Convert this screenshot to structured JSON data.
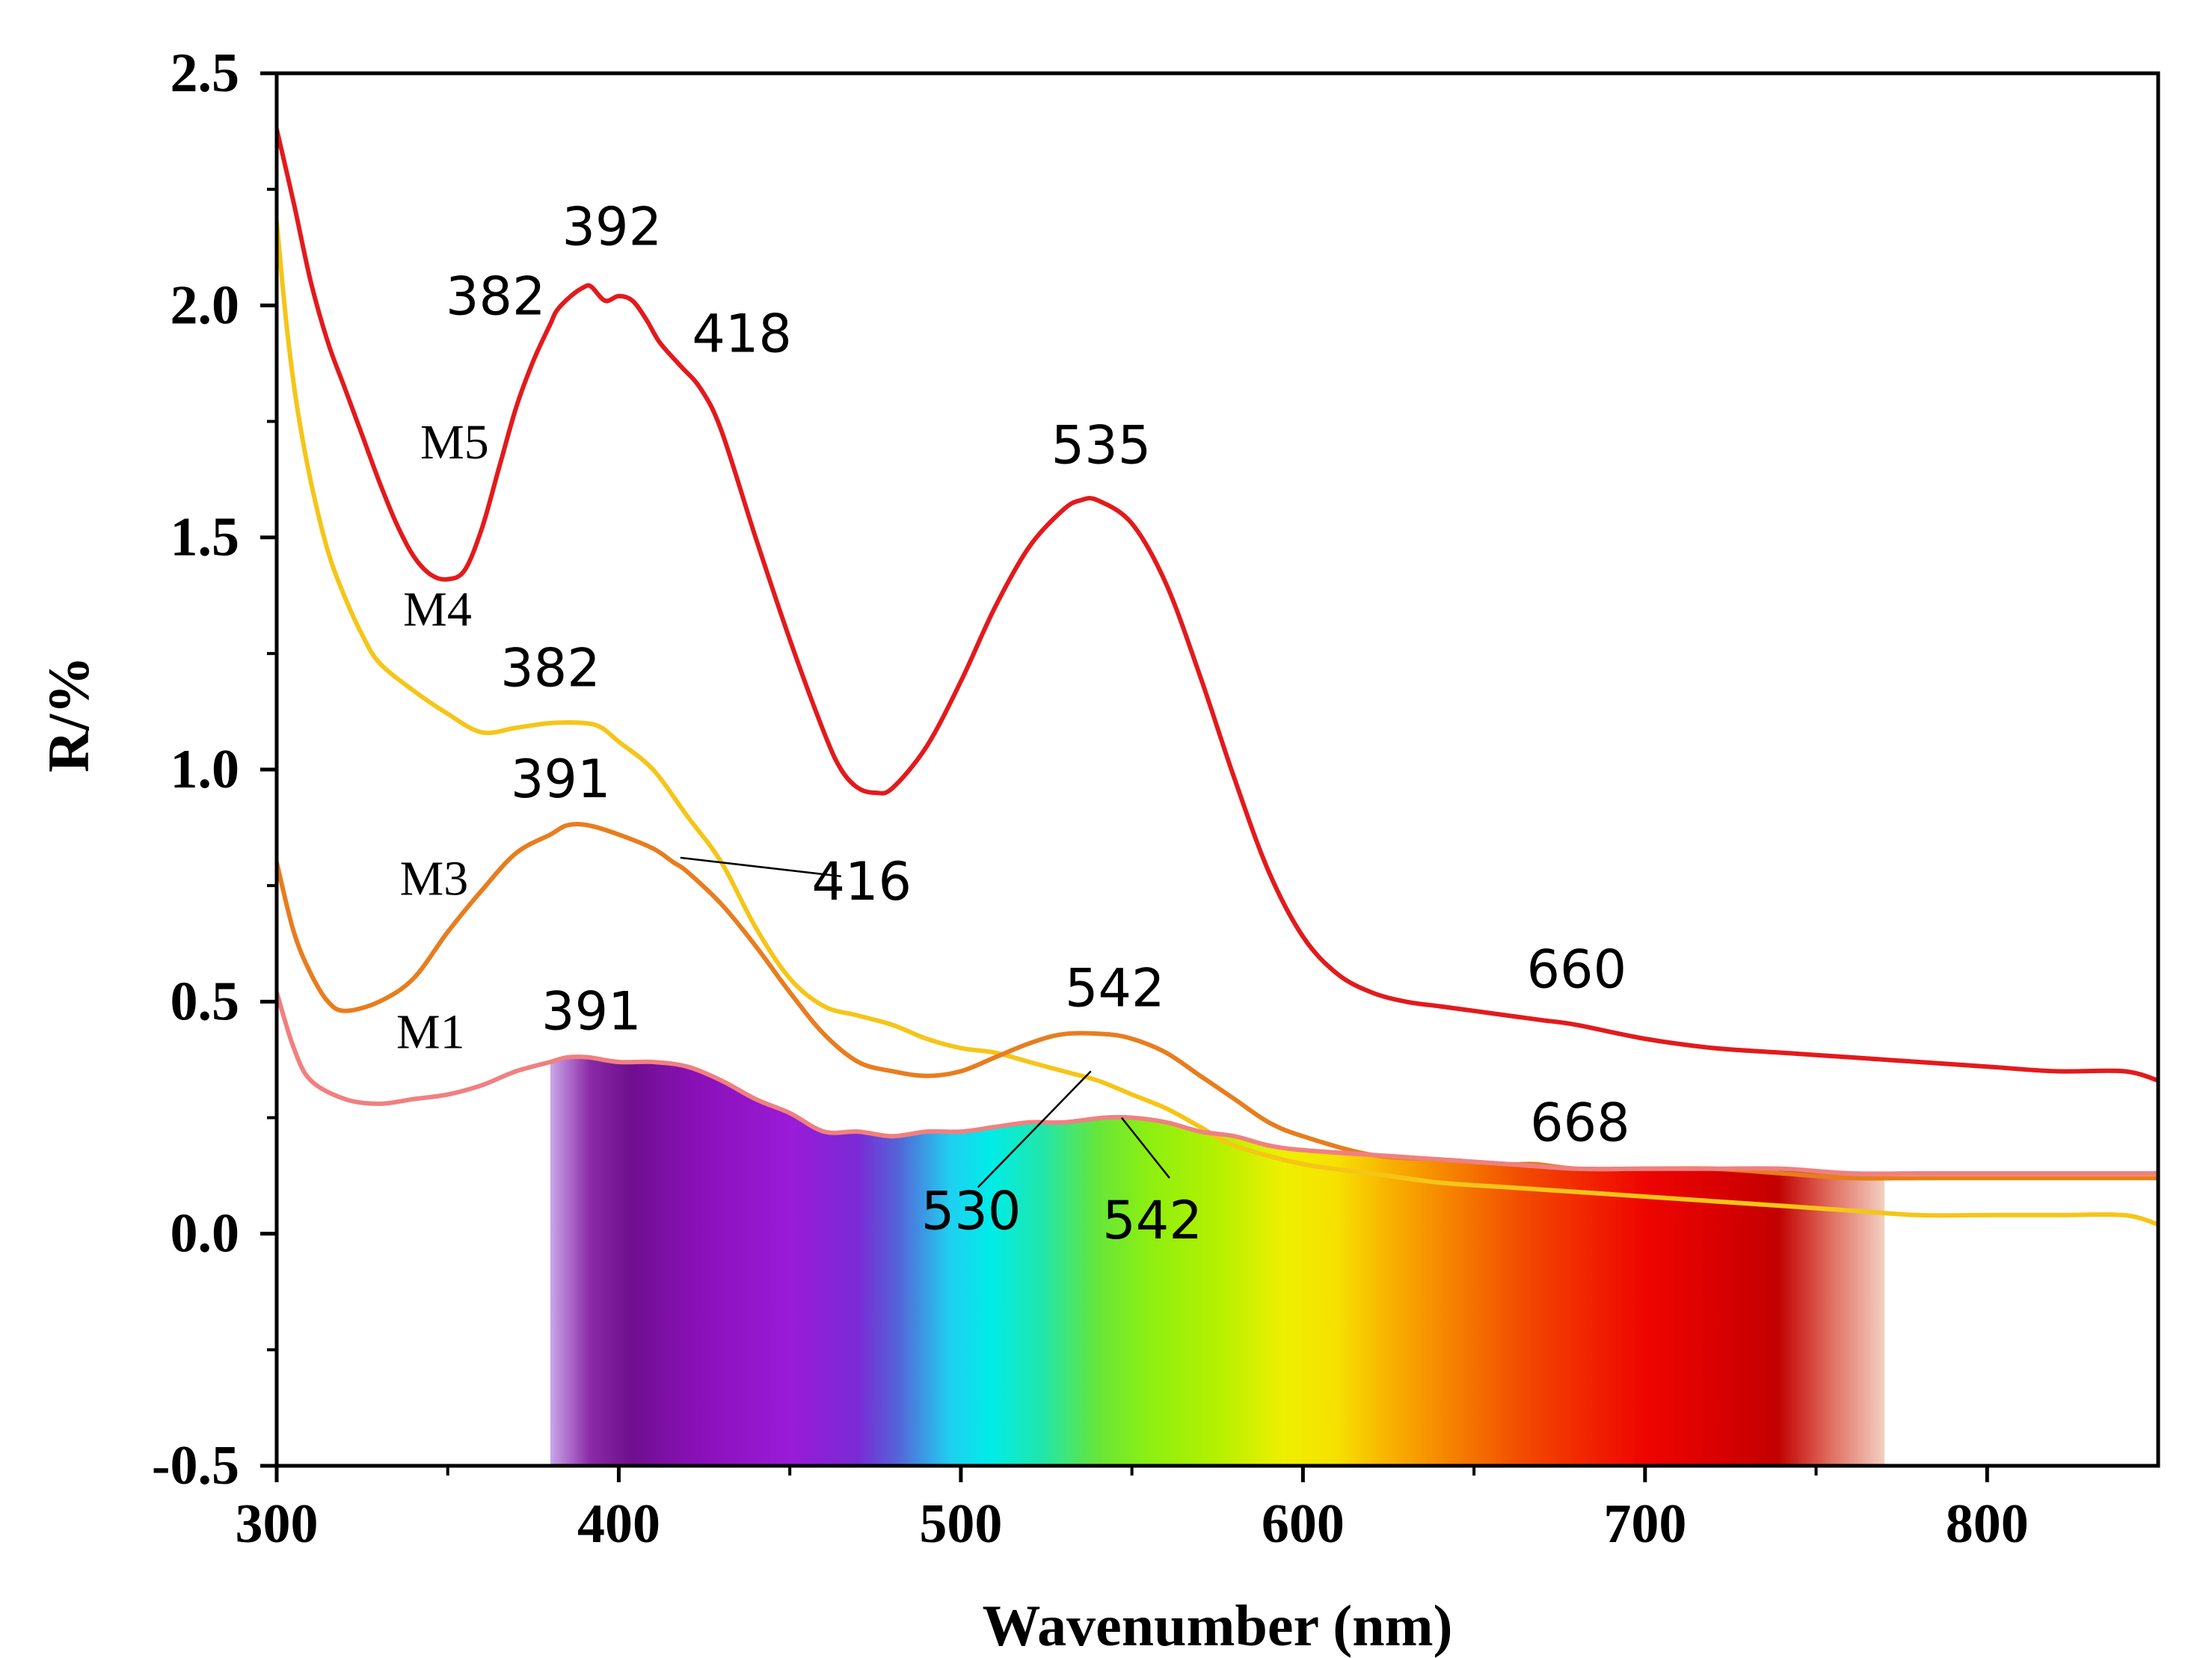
{
  "chart_data": {
    "type": "line",
    "title": "",
    "xlabel": "Wavenumber (nm)",
    "ylabel": "R/%",
    "xlim": [
      300,
      850
    ],
    "ylim": [
      -0.5,
      2.5
    ],
    "x_ticks": [
      300,
      400,
      500,
      600,
      700,
      800
    ],
    "y_ticks": [
      -0.5,
      0.0,
      0.5,
      1.0,
      1.5,
      2.0,
      2.5
    ],
    "x_tick_labels": [
      "300",
      "400",
      "500",
      "600",
      "700",
      "800"
    ],
    "y_tick_labels": [
      "-0.5",
      "0.0",
      "0.5",
      "1.0",
      "1.5",
      "2.0",
      "2.5"
    ],
    "grid": false,
    "visible_spectrum_band": {
      "from": 380,
      "to": 770
    },
    "series": [
      {
        "name": "M5",
        "color": "#e31a1c",
        "points": [
          [
            300,
            2.38
          ],
          [
            305,
            2.22
          ],
          [
            310,
            2.05
          ],
          [
            315,
            1.92
          ],
          [
            320,
            1.82
          ],
          [
            325,
            1.72
          ],
          [
            330,
            1.62
          ],
          [
            335,
            1.53
          ],
          [
            340,
            1.46
          ],
          [
            345,
            1.42
          ],
          [
            350,
            1.41
          ],
          [
            355,
            1.43
          ],
          [
            360,
            1.52
          ],
          [
            365,
            1.65
          ],
          [
            370,
            1.78
          ],
          [
            375,
            1.88
          ],
          [
            380,
            1.96
          ],
          [
            382,
            1.99
          ],
          [
            386,
            2.02
          ],
          [
            390,
            2.04
          ],
          [
            392,
            2.04
          ],
          [
            396,
            2.01
          ],
          [
            400,
            2.02
          ],
          [
            404,
            2.01
          ],
          [
            408,
            1.97
          ],
          [
            412,
            1.92
          ],
          [
            418,
            1.87
          ],
          [
            424,
            1.82
          ],
          [
            430,
            1.73
          ],
          [
            440,
            1.5
          ],
          [
            450,
            1.28
          ],
          [
            460,
            1.08
          ],
          [
            465,
            1.0
          ],
          [
            470,
            0.96
          ],
          [
            475,
            0.95
          ],
          [
            480,
            0.96
          ],
          [
            490,
            1.05
          ],
          [
            500,
            1.19
          ],
          [
            510,
            1.35
          ],
          [
            520,
            1.48
          ],
          [
            530,
            1.56
          ],
          [
            535,
            1.58
          ],
          [
            540,
            1.58
          ],
          [
            550,
            1.53
          ],
          [
            560,
            1.4
          ],
          [
            570,
            1.2
          ],
          [
            580,
            0.98
          ],
          [
            590,
            0.78
          ],
          [
            600,
            0.64
          ],
          [
            610,
            0.56
          ],
          [
            620,
            0.52
          ],
          [
            630,
            0.5
          ],
          [
            640,
            0.49
          ],
          [
            650,
            0.48
          ],
          [
            660,
            0.47
          ],
          [
            670,
            0.46
          ],
          [
            680,
            0.45
          ],
          [
            700,
            0.42
          ],
          [
            720,
            0.4
          ],
          [
            740,
            0.39
          ],
          [
            760,
            0.38
          ],
          [
            780,
            0.37
          ],
          [
            800,
            0.36
          ],
          [
            820,
            0.35
          ],
          [
            840,
            0.35
          ],
          [
            850,
            0.33
          ]
        ]
      },
      {
        "name": "M4",
        "color": "#f5c518",
        "points": [
          [
            300,
            2.18
          ],
          [
            303,
            1.95
          ],
          [
            306,
            1.78
          ],
          [
            310,
            1.62
          ],
          [
            315,
            1.47
          ],
          [
            320,
            1.37
          ],
          [
            325,
            1.29
          ],
          [
            330,
            1.23
          ],
          [
            340,
            1.17
          ],
          [
            350,
            1.12
          ],
          [
            360,
            1.08
          ],
          [
            370,
            1.09
          ],
          [
            380,
            1.1
          ],
          [
            390,
            1.1
          ],
          [
            395,
            1.09
          ],
          [
            400,
            1.06
          ],
          [
            410,
            1.0
          ],
          [
            420,
            0.9
          ],
          [
            430,
            0.8
          ],
          [
            440,
            0.66
          ],
          [
            450,
            0.55
          ],
          [
            460,
            0.49
          ],
          [
            470,
            0.47
          ],
          [
            480,
            0.45
          ],
          [
            490,
            0.42
          ],
          [
            500,
            0.4
          ],
          [
            510,
            0.39
          ],
          [
            520,
            0.37
          ],
          [
            530,
            0.35
          ],
          [
            540,
            0.33
          ],
          [
            550,
            0.3
          ],
          [
            560,
            0.27
          ],
          [
            570,
            0.23
          ],
          [
            580,
            0.19
          ],
          [
            600,
            0.15
          ],
          [
            620,
            0.13
          ],
          [
            640,
            0.11
          ],
          [
            660,
            0.1
          ],
          [
            680,
            0.09
          ],
          [
            700,
            0.08
          ],
          [
            720,
            0.07
          ],
          [
            740,
            0.06
          ],
          [
            760,
            0.05
          ],
          [
            780,
            0.04
          ],
          [
            800,
            0.04
          ],
          [
            820,
            0.04
          ],
          [
            840,
            0.04
          ],
          [
            850,
            0.02
          ]
        ]
      },
      {
        "name": "M3",
        "color": "#e87d1e",
        "points": [
          [
            300,
            0.8
          ],
          [
            305,
            0.65
          ],
          [
            310,
            0.56
          ],
          [
            315,
            0.5
          ],
          [
            320,
            0.48
          ],
          [
            330,
            0.5
          ],
          [
            340,
            0.55
          ],
          [
            350,
            0.65
          ],
          [
            360,
            0.74
          ],
          [
            370,
            0.82
          ],
          [
            380,
            0.86
          ],
          [
            385,
            0.88
          ],
          [
            391,
            0.88
          ],
          [
            400,
            0.86
          ],
          [
            410,
            0.83
          ],
          [
            416,
            0.8
          ],
          [
            420,
            0.78
          ],
          [
            430,
            0.71
          ],
          [
            440,
            0.62
          ],
          [
            450,
            0.52
          ],
          [
            460,
            0.43
          ],
          [
            470,
            0.37
          ],
          [
            480,
            0.35
          ],
          [
            490,
            0.34
          ],
          [
            500,
            0.35
          ],
          [
            510,
            0.38
          ],
          [
            520,
            0.41
          ],
          [
            530,
            0.43
          ],
          [
            542,
            0.43
          ],
          [
            550,
            0.42
          ],
          [
            560,
            0.39
          ],
          [
            570,
            0.34
          ],
          [
            580,
            0.29
          ],
          [
            590,
            0.24
          ],
          [
            600,
            0.21
          ],
          [
            620,
            0.17
          ],
          [
            640,
            0.16
          ],
          [
            660,
            0.15
          ],
          [
            668,
            0.15
          ],
          [
            680,
            0.14
          ],
          [
            700,
            0.14
          ],
          [
            720,
            0.14
          ],
          [
            740,
            0.13
          ],
          [
            760,
            0.12
          ],
          [
            780,
            0.12
          ],
          [
            800,
            0.12
          ],
          [
            820,
            0.12
          ],
          [
            840,
            0.12
          ],
          [
            850,
            0.12
          ]
        ]
      },
      {
        "name": "M1",
        "color": "#f08080",
        "points": [
          [
            300,
            0.52
          ],
          [
            305,
            0.4
          ],
          [
            310,
            0.33
          ],
          [
            320,
            0.29
          ],
          [
            330,
            0.28
          ],
          [
            340,
            0.29
          ],
          [
            350,
            0.3
          ],
          [
            360,
            0.32
          ],
          [
            370,
            0.35
          ],
          [
            380,
            0.37
          ],
          [
            385,
            0.38
          ],
          [
            391,
            0.38
          ],
          [
            400,
            0.37
          ],
          [
            410,
            0.37
          ],
          [
            420,
            0.36
          ],
          [
            430,
            0.33
          ],
          [
            440,
            0.29
          ],
          [
            450,
            0.26
          ],
          [
            460,
            0.22
          ],
          [
            470,
            0.22
          ],
          [
            480,
            0.21
          ],
          [
            490,
            0.22
          ],
          [
            500,
            0.22
          ],
          [
            510,
            0.23
          ],
          [
            520,
            0.24
          ],
          [
            530,
            0.24
          ],
          [
            542,
            0.25
          ],
          [
            550,
            0.25
          ],
          [
            560,
            0.24
          ],
          [
            570,
            0.22
          ],
          [
            580,
            0.21
          ],
          [
            590,
            0.19
          ],
          [
            600,
            0.18
          ],
          [
            620,
            0.17
          ],
          [
            640,
            0.16
          ],
          [
            660,
            0.15
          ],
          [
            680,
            0.14
          ],
          [
            700,
            0.14
          ],
          [
            720,
            0.14
          ],
          [
            740,
            0.14
          ],
          [
            760,
            0.13
          ],
          [
            780,
            0.13
          ],
          [
            800,
            0.13
          ],
          [
            820,
            0.13
          ],
          [
            840,
            0.13
          ],
          [
            850,
            0.13
          ]
        ]
      }
    ],
    "series_labels": [
      {
        "text": "M5",
        "x": 352,
        "y": 1.67
      },
      {
        "text": "M4",
        "x": 347,
        "y": 1.31
      },
      {
        "text": "M3",
        "x": 346,
        "y": 0.73
      },
      {
        "text": "M1",
        "x": 345,
        "y": 0.4
      }
    ],
    "peak_labels": [
      {
        "text": "392",
        "x": 398,
        "y": 2.13
      },
      {
        "text": "382",
        "x": 364,
        "y": 1.98
      },
      {
        "text": "418",
        "x": 436,
        "y": 1.9
      },
      {
        "text": "535",
        "x": 541,
        "y": 1.66
      },
      {
        "text": "382",
        "x": 380,
        "y": 1.18
      },
      {
        "text": "391",
        "x": 383,
        "y": 0.94
      },
      {
        "text": "416",
        "x": 471,
        "y": 0.72
      },
      {
        "text": "542",
        "x": 545,
        "y": 0.49
      },
      {
        "text": "391",
        "x": 392,
        "y": 0.44
      },
      {
        "text": "660",
        "x": 680,
        "y": 0.53
      },
      {
        "text": "668",
        "x": 681,
        "y": 0.2
      },
      {
        "text": "530",
        "x": 503,
        "y": 0.01
      },
      {
        "text": "542",
        "x": 556,
        "y": -0.01
      }
    ],
    "leader_lines": [
      {
        "from": [
          418,
          0.81
        ],
        "to": [
          465,
          0.77
        ]
      },
      {
        "from": [
          538,
          0.35
        ],
        "to": [
          505,
          0.1
        ]
      },
      {
        "from": [
          547,
          0.25
        ],
        "to": [
          561,
          0.12
        ]
      }
    ]
  }
}
